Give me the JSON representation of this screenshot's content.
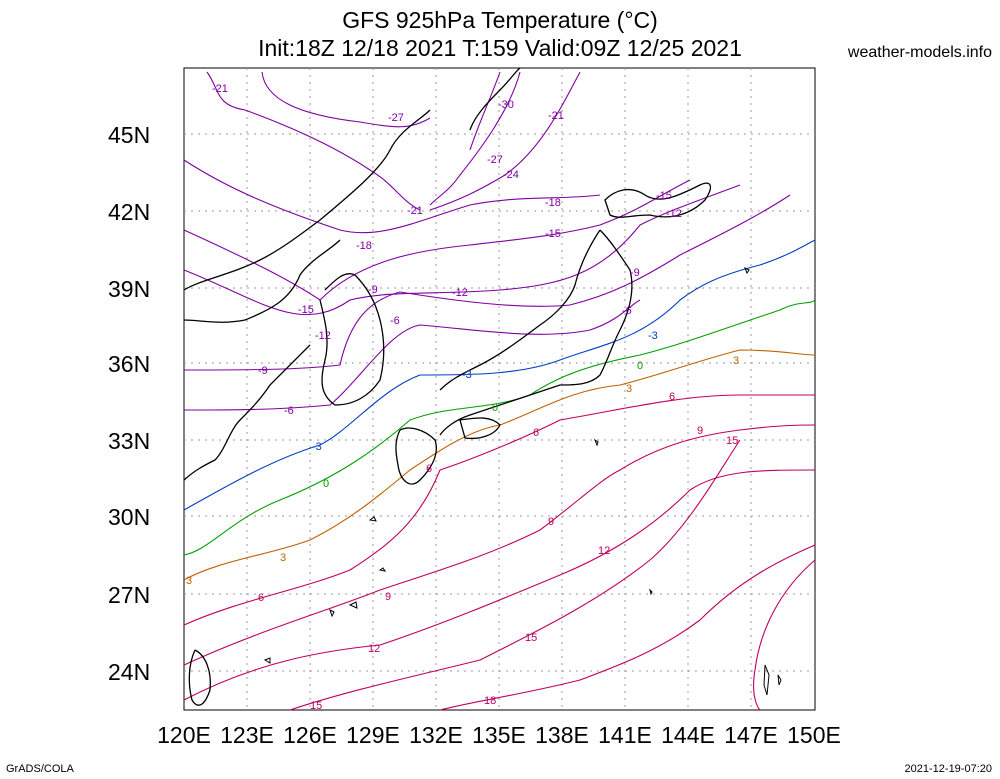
{
  "title_line1": "GFS 925hPa Temperature (°C)",
  "title_line2": "Init:18Z 12/18 2021 T:159 Valid:09Z 12/25 2021",
  "site": "weather-models.info",
  "credit": "GrADS/COLA",
  "timestamp": "2021-12-19-07:20",
  "lat_ticks": [
    "24N",
    "27N",
    "30N",
    "33N",
    "36N",
    "39N",
    "42N",
    "45N"
  ],
  "lon_ticks": [
    "120E",
    "123E",
    "126E",
    "129E",
    "132E",
    "135E",
    "138E",
    "141E",
    "144E",
    "147E",
    "150E"
  ],
  "contour_labels": [
    {
      "text": "-21",
      "color": "#8000a0"
    },
    {
      "text": "-27",
      "color": "#8000a0"
    },
    {
      "text": "-30",
      "color": "#8000a0"
    },
    {
      "text": "-21",
      "color": "#8000a0"
    },
    {
      "text": "-27",
      "color": "#8000a0"
    },
    {
      "text": "-24",
      "color": "#8000a0"
    },
    {
      "text": "-21",
      "color": "#8000a0"
    },
    {
      "text": "-18",
      "color": "#8000a0"
    },
    {
      "text": "-18",
      "color": "#8000a0"
    },
    {
      "text": "-15",
      "color": "#8000a0"
    },
    {
      "text": "-15",
      "color": "#8000a0"
    },
    {
      "text": "-12",
      "color": "#8000a0"
    },
    {
      "text": "-12",
      "color": "#8000a0"
    },
    {
      "text": "-9",
      "color": "#8000a0"
    },
    {
      "text": "-9",
      "color": "#8000a0"
    },
    {
      "text": "-15",
      "color": "#8000a0"
    },
    {
      "text": "-12",
      "color": "#8000a0"
    },
    {
      "text": "-6",
      "color": "#8000a0"
    },
    {
      "text": "-6",
      "color": "#8000a0"
    },
    {
      "text": "-9",
      "color": "#8000a0"
    },
    {
      "text": "-6",
      "color": "#8000a0"
    },
    {
      "text": "-3",
      "color": "#0040c0"
    },
    {
      "text": "-3",
      "color": "#0040c0"
    },
    {
      "text": "-3",
      "color": "#0040c0"
    },
    {
      "text": "0",
      "color": "#00a000"
    },
    {
      "text": "0",
      "color": "#00a000"
    },
    {
      "text": "0",
      "color": "#00a000"
    },
    {
      "text": "3",
      "color": "#c06000"
    },
    {
      "text": "3",
      "color": "#c06000"
    },
    {
      "text": "3",
      "color": "#c06000"
    },
    {
      "text": "6",
      "color": "#c00060"
    },
    {
      "text": "6",
      "color": "#c00060"
    },
    {
      "text": "6",
      "color": "#c00060"
    },
    {
      "text": "9",
      "color": "#c00060"
    },
    {
      "text": "9",
      "color": "#c00060"
    },
    {
      "text": "9",
      "color": "#c00060"
    },
    {
      "text": "12",
      "color": "#c00060"
    },
    {
      "text": "12",
      "color": "#c00060"
    },
    {
      "text": "15",
      "color": "#c00060"
    },
    {
      "text": "15",
      "color": "#c00060"
    },
    {
      "text": "15",
      "color": "#c00060"
    },
    {
      "text": "18",
      "color": "#c00060"
    },
    {
      "text": "6",
      "color": "#c00060"
    },
    {
      "text": "3",
      "color": "#c06000"
    }
  ]
}
